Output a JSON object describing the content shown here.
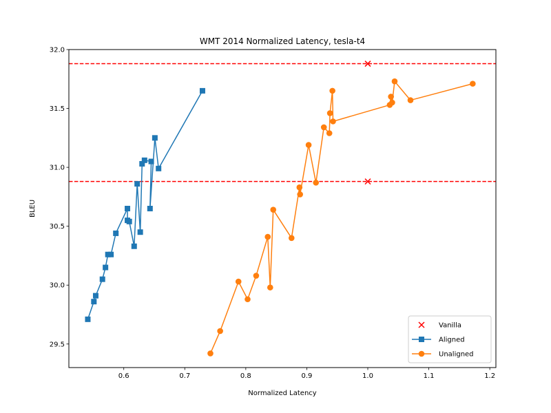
{
  "chart_data": {
    "type": "line",
    "title": "WMT 2014 Normalized Latency, tesla-t4",
    "xlabel": "Normalized Latency",
    "ylabel": "BLEU",
    "xlim": [
      0.51,
      1.21
    ],
    "ylim": [
      29.3,
      32.0
    ],
    "xticks": [
      "0.6",
      "0.7",
      "0.8",
      "0.9",
      "1.0",
      "1.1",
      "1.2"
    ],
    "yticks": [
      "29.5",
      "30.0",
      "30.5",
      "31.0",
      "31.5",
      "32.0"
    ],
    "grid": false,
    "legend_position": "lower-right",
    "hlines": [
      {
        "y": 31.88,
        "color": "#ff0000",
        "style": "dashed"
      },
      {
        "y": 30.88,
        "color": "#ff0000",
        "style": "dashed"
      }
    ],
    "series": [
      {
        "name": "Vanilla",
        "kind": "scatter",
        "marker": "x",
        "color": "#ff0000",
        "points": [
          [
            1.0,
            31.88
          ],
          [
            1.0,
            30.88
          ]
        ]
      },
      {
        "name": "Aligned",
        "kind": "line",
        "marker": "square",
        "color": "#1f77b4",
        "points": [
          [
            0.541,
            29.71
          ],
          [
            0.551,
            29.86
          ],
          [
            0.554,
            29.91
          ],
          [
            0.565,
            30.05
          ],
          [
            0.57,
            30.15
          ],
          [
            0.574,
            30.26
          ],
          [
            0.579,
            30.26
          ],
          [
            0.587,
            30.44
          ],
          [
            0.606,
            30.65
          ],
          [
            0.606,
            30.55
          ],
          [
            0.609,
            30.54
          ],
          [
            0.617,
            30.33
          ],
          [
            0.622,
            30.86
          ],
          [
            0.627,
            30.45
          ],
          [
            0.63,
            31.03
          ],
          [
            0.634,
            31.06
          ],
          [
            0.645,
            31.05
          ],
          [
            0.643,
            30.65
          ],
          [
            0.651,
            31.25
          ],
          [
            0.657,
            30.99
          ],
          [
            0.729,
            31.65
          ]
        ]
      },
      {
        "name": "Unaligned",
        "kind": "line",
        "marker": "circle",
        "color": "#ff7f0e",
        "points": [
          [
            0.742,
            29.42
          ],
          [
            0.758,
            29.61
          ],
          [
            0.788,
            30.03
          ],
          [
            0.803,
            29.88
          ],
          [
            0.817,
            30.08
          ],
          [
            0.836,
            30.41
          ],
          [
            0.84,
            29.98
          ],
          [
            0.845,
            30.64
          ],
          [
            0.875,
            30.4
          ],
          [
            0.888,
            30.83
          ],
          [
            0.889,
            30.77
          ],
          [
            0.903,
            31.19
          ],
          [
            0.915,
            30.87
          ],
          [
            0.928,
            31.34
          ],
          [
            0.937,
            31.29
          ],
          [
            0.938,
            31.46
          ],
          [
            0.942,
            31.65
          ],
          [
            0.943,
            31.39
          ],
          [
            1.036,
            31.53
          ],
          [
            1.038,
            31.6
          ],
          [
            1.04,
            31.55
          ],
          [
            1.044,
            31.73
          ],
          [
            1.07,
            31.57
          ],
          [
            1.172,
            31.71
          ]
        ]
      }
    ]
  }
}
